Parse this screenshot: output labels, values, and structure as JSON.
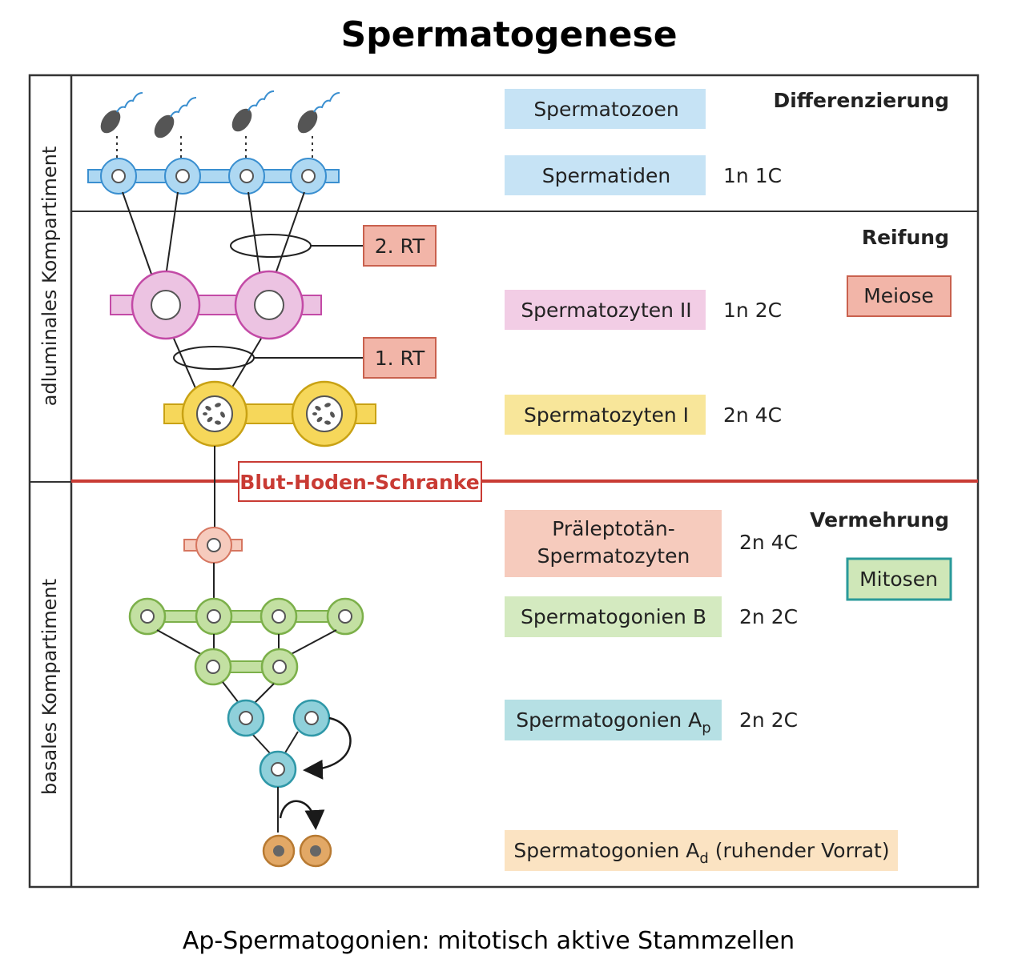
{
  "title": "Spermatogenese",
  "caption": "Ap-Spermatogonien: mitotisch aktive Stammzellen",
  "compartments": {
    "adluminal": "adluminales Kompartiment",
    "basal": "basales Kompartiment"
  },
  "phases": {
    "differenzierung": "Differenzierung",
    "reifung": "Reifung",
    "vermehrung": "Vermehrung"
  },
  "processes": {
    "meiose": "Meiose",
    "mitosen": "Mitosen"
  },
  "divisions": {
    "rt2": "2. RT",
    "rt1": "1. RT"
  },
  "barrier": "Blut-Hoden-Schranke",
  "stages": {
    "spermatozoen": {
      "label": "Spermatozoen",
      "ploidy": ""
    },
    "spermatiden": {
      "label": "Spermatiden",
      "ploidy": "1n 1C"
    },
    "spermatozyten2": {
      "label": "Spermatozyten II",
      "ploidy": "1n 2C"
    },
    "spermatozyten1": {
      "label": "Spermatozyten I",
      "ploidy": "2n 4C"
    },
    "praeleptotaen": {
      "line1": "Präleptotän-",
      "line2": "Spermatozyten",
      "ploidy": "2n 4C"
    },
    "spermatogonienB": {
      "label": "Spermatogonien B",
      "ploidy": "2n 2C"
    },
    "spermatogonienAp": {
      "label": "Spermatogonien A",
      "sub": "p",
      "ploidy": "2n 2C"
    },
    "spermatogonienAd": {
      "label": "Spermatogonien A",
      "sub": "d",
      "suffix": " (ruhender Vorrat)"
    }
  },
  "colors": {
    "spermatid_blue": "#6cb6e0",
    "spermatozyt2_pink": "#d98cc4",
    "spermatozyt1_yellow": "#e8c33a",
    "praeleptotaen_salmon": "#e99b8a",
    "spermatogonienB_green": "#98c66c",
    "spermatogonienAp_teal": "#4fb3c4",
    "spermatogonienAd_orange": "#d9a05c",
    "barrier_red": "#c93b34"
  }
}
